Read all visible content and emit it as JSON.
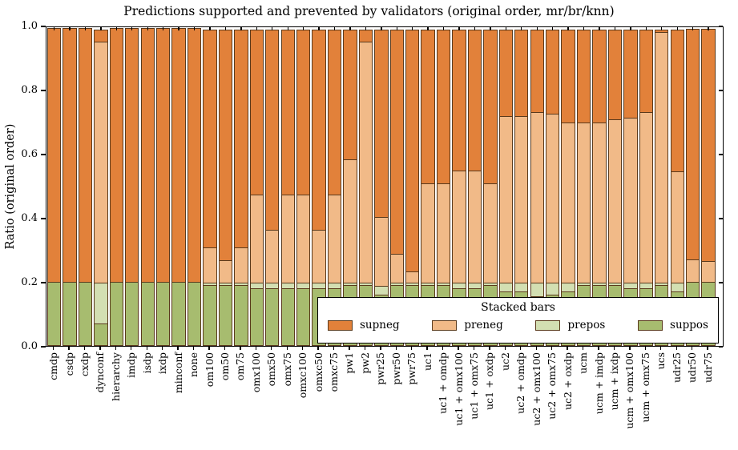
{
  "chart_data": {
    "type": "bar",
    "stacked": true,
    "title": "Predictions supported and prevented by validators (original order, mr/br/knn)",
    "xlabel": "",
    "ylabel": "Ratio (original order)",
    "ylim": [
      0.0,
      1.0
    ],
    "yticks": [
      "0.0",
      "0.2",
      "0.4",
      "0.6",
      "0.8",
      "1.0"
    ],
    "grid": false,
    "legend_title": "Stacked bars",
    "legend_position": "lower center inside plot",
    "legend_order": [
      "supneg",
      "preneg",
      "prepos",
      "suppos"
    ],
    "colors": {
      "supneg": "#E2813A",
      "preneg": "#F1BA88",
      "prepos": "#D3DFB2",
      "suppos": "#A7BC6F",
      "bar_edge": "#5a3a1c",
      "axis": "#000000",
      "background": "#ffffff"
    },
    "categories": [
      "cmdp",
      "csdp",
      "cxdp",
      "dynconf",
      "hierarchy",
      "imdp",
      "isdp",
      "ixdp",
      "minconf",
      "none",
      "om100",
      "om50",
      "om75",
      "omx100",
      "omx50",
      "omx75",
      "omxc100",
      "omxc50",
      "omxc75",
      "pw1",
      "pw2",
      "pwr25",
      "pwr50",
      "pwr75",
      "uc1",
      "uc1 + omdp",
      "uc1 + omx100",
      "uc1 + omx75",
      "uc1 + oxdp",
      "uc2",
      "uc2 + omdp",
      "uc2 + omx100",
      "uc2 + omx75",
      "uc2 + oxdp",
      "ucm",
      "ucm + imdp",
      "ucm + ixdp",
      "ucm + omx100",
      "ucm + omx75",
      "ucs",
      "udr25",
      "udr50",
      "udr75"
    ],
    "series": [
      {
        "name": "suppos",
        "values": [
          0.2,
          0.2,
          0.2,
          0.07,
          0.2,
          0.2,
          0.2,
          0.2,
          0.2,
          0.2,
          0.19,
          0.19,
          0.19,
          0.18,
          0.18,
          0.18,
          0.18,
          0.18,
          0.18,
          0.19,
          0.19,
          0.16,
          0.19,
          0.19,
          0.19,
          0.19,
          0.18,
          0.18,
          0.19,
          0.17,
          0.17,
          0.155,
          0.16,
          0.17,
          0.19,
          0.19,
          0.19,
          0.18,
          0.18,
          0.19,
          0.17,
          0.2,
          0.2
        ]
      },
      {
        "name": "prepos",
        "values": [
          0.0,
          0.0,
          0.0,
          0.13,
          0.0,
          0.0,
          0.0,
          0.0,
          0.0,
          0.0,
          0.01,
          0.01,
          0.01,
          0.02,
          0.02,
          0.02,
          0.02,
          0.02,
          0.02,
          0.01,
          0.01,
          0.03,
          0.01,
          0.01,
          0.01,
          0.01,
          0.02,
          0.02,
          0.01,
          0.03,
          0.03,
          0.045,
          0.04,
          0.03,
          0.01,
          0.01,
          0.01,
          0.02,
          0.02,
          0.01,
          0.03,
          0.0,
          0.0
        ]
      },
      {
        "name": "preneg",
        "values": [
          0.0,
          0.0,
          0.0,
          0.76,
          0.0,
          0.0,
          0.0,
          0.0,
          0.0,
          0.0,
          0.115,
          0.075,
          0.115,
          0.28,
          0.17,
          0.28,
          0.28,
          0.17,
          0.28,
          0.39,
          0.76,
          0.22,
          0.095,
          0.04,
          0.315,
          0.315,
          0.355,
          0.355,
          0.315,
          0.527,
          0.527,
          0.54,
          0.535,
          0.505,
          0.505,
          0.505,
          0.515,
          0.52,
          0.54,
          0.79,
          0.3525,
          0.075,
          0.07
        ]
      },
      {
        "name": "supneg",
        "values": [
          0.8,
          0.8,
          0.8,
          0.04,
          0.8,
          0.8,
          0.8,
          0.8,
          0.8,
          0.8,
          0.685,
          0.725,
          0.685,
          0.52,
          0.63,
          0.52,
          0.52,
          0.63,
          0.52,
          0.41,
          0.04,
          0.59,
          0.705,
          0.76,
          0.485,
          0.485,
          0.445,
          0.445,
          0.485,
          0.273,
          0.273,
          0.26,
          0.265,
          0.295,
          0.295,
          0.295,
          0.285,
          0.28,
          0.26,
          0.01,
          0.4475,
          0.725,
          0.73
        ]
      }
    ]
  }
}
